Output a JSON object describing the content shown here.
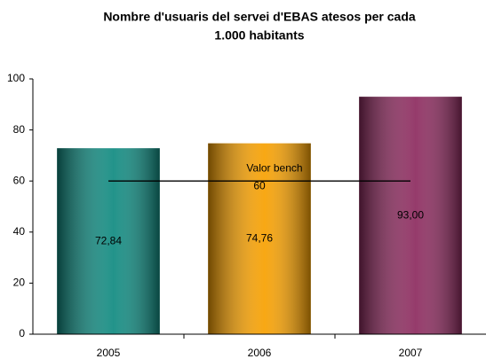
{
  "chart_data": {
    "type": "bar",
    "title": [
      "Nombre d'usuaris del servei d'EBAS atesos per cada",
      "1.000 habitants"
    ],
    "categories": [
      "2005",
      "2006",
      "2007"
    ],
    "values": [
      72.84,
      74.76,
      93.0
    ],
    "value_labels": [
      "72,84",
      "74,76",
      "93,00"
    ],
    "colors": [
      "#0f8a80",
      "#f7a000",
      "#8c2a5e"
    ],
    "ylim": [
      0,
      100
    ],
    "yticks": [
      0,
      20,
      40,
      60,
      80,
      100
    ],
    "benchmark": {
      "value": 60,
      "label": "Valor bench"
    }
  }
}
